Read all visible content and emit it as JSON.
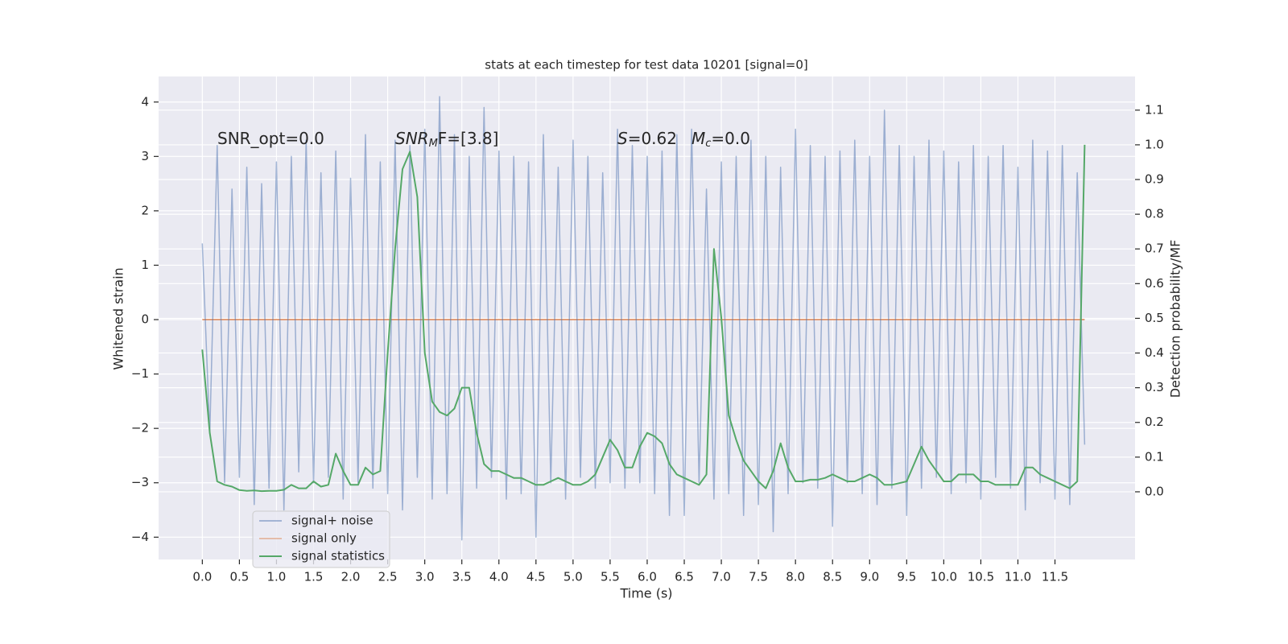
{
  "chart_data": {
    "type": "line",
    "title": "stats at each timestep for test data 10201 [signal=0]",
    "x_label": "Time (s)",
    "y_label": "Whitened strain",
    "y2_label": "Detection probability/MF",
    "annotations": [
      [
        "SNR_opt=0.0"
      ],
      [
        "SNR",
        "M",
        "F=[3.8]"
      ],
      [
        "S",
        "=0.62"
      ],
      [
        "M",
        "c",
        "=0.0"
      ]
    ],
    "x": [
      0.0,
      0.1,
      0.2,
      0.3,
      0.4,
      0.5,
      0.6,
      0.7,
      0.8,
      0.9,
      1.0,
      1.1,
      1.2,
      1.3,
      1.4,
      1.5,
      1.6,
      1.7,
      1.8,
      1.9,
      2.0,
      2.1,
      2.2,
      2.3,
      2.4,
      2.5,
      2.6,
      2.7,
      2.8,
      2.9,
      3.0,
      3.1,
      3.2,
      3.3,
      3.4,
      3.5,
      3.6,
      3.7,
      3.8,
      3.9,
      4.0,
      4.1,
      4.2,
      4.3,
      4.4,
      4.5,
      4.6,
      4.7,
      4.8,
      4.9,
      5.0,
      5.1,
      5.2,
      5.3,
      5.4,
      5.5,
      5.6,
      5.7,
      5.8,
      5.9,
      6.0,
      6.1,
      6.2,
      6.3,
      6.4,
      6.5,
      6.6,
      6.7,
      6.8,
      6.9,
      7.0,
      7.1,
      7.2,
      7.3,
      7.4,
      7.5,
      7.6,
      7.7,
      7.8,
      7.9,
      8.0,
      8.1,
      8.2,
      8.3,
      8.4,
      8.5,
      8.6,
      8.7,
      8.8,
      8.9,
      9.0,
      9.1,
      9.2,
      9.3,
      9.4,
      9.5,
      9.6,
      9.7,
      9.8,
      9.9,
      10.0,
      10.1,
      10.2,
      10.3,
      10.4,
      10.5,
      10.6,
      10.7,
      10.8,
      10.9,
      11.0,
      11.1,
      11.2,
      11.3,
      11.4,
      11.5,
      11.6,
      11.7,
      11.8,
      11.9
    ],
    "series": [
      {
        "name": "signal+ noise",
        "color": "#4c72b0",
        "axis": "y",
        "values": [
          1.4,
          -2.1,
          3.2,
          -3.0,
          2.4,
          -2.9,
          2.8,
          -3.4,
          2.5,
          -3.1,
          2.9,
          -3.5,
          3.0,
          -2.8,
          3.3,
          -3.0,
          2.7,
          -2.9,
          3.1,
          -3.3,
          2.6,
          -3.0,
          3.4,
          -3.1,
          2.9,
          -3.2,
          3.3,
          -3.5,
          3.2,
          -2.9,
          3.5,
          -3.3,
          4.1,
          -3.2,
          3.4,
          -4.05,
          3.0,
          -3.1,
          3.9,
          -2.9,
          3.1,
          -3.3,
          3.0,
          -3.2,
          2.9,
          -4.0,
          3.4,
          -3.0,
          2.8,
          -3.3,
          3.3,
          -2.9,
          3.0,
          -3.1,
          2.7,
          -3.0,
          3.5,
          -3.1,
          3.2,
          -3.0,
          3.0,
          -3.2,
          3.1,
          -3.6,
          3.4,
          -3.6,
          3.5,
          -3.0,
          2.4,
          -3.3,
          2.9,
          -3.2,
          3.0,
          -3.6,
          3.3,
          -3.4,
          3.0,
          -3.9,
          2.8,
          -3.2,
          3.5,
          -3.0,
          3.2,
          -3.1,
          3.0,
          -3.8,
          3.1,
          -3.0,
          3.3,
          -3.2,
          3.0,
          -3.4,
          3.85,
          -3.1,
          3.2,
          -3.6,
          3.0,
          -3.1,
          3.3,
          -2.9,
          3.1,
          -3.2,
          2.9,
          -3.0,
          3.2,
          -3.3,
          3.0,
          -2.9,
          3.2,
          -3.1,
          2.8,
          -3.5,
          3.3,
          -3.0,
          3.1,
          -3.3,
          3.2,
          -3.4,
          2.7,
          -2.3
        ]
      },
      {
        "name": "signal only",
        "color": "#dd8452",
        "axis": "y",
        "values": [
          0,
          0,
          0,
          0,
          0,
          0,
          0,
          0,
          0,
          0,
          0,
          0,
          0,
          0,
          0,
          0,
          0,
          0,
          0,
          0,
          0,
          0,
          0,
          0,
          0,
          0,
          0,
          0,
          0,
          0,
          0,
          0,
          0,
          0,
          0,
          0,
          0,
          0,
          0,
          0,
          0,
          0,
          0,
          0,
          0,
          0,
          0,
          0,
          0,
          0,
          0,
          0,
          0,
          0,
          0,
          0,
          0,
          0,
          0,
          0,
          0,
          0,
          0,
          0,
          0,
          0,
          0,
          0,
          0,
          0,
          0,
          0,
          0,
          0,
          0,
          0,
          0,
          0,
          0,
          0,
          0,
          0,
          0,
          0,
          0,
          0,
          0,
          0,
          0,
          0,
          0,
          0,
          0,
          0,
          0,
          0,
          0,
          0,
          0,
          0,
          0,
          0,
          0,
          0,
          0,
          0,
          0,
          0,
          0,
          0,
          0,
          0,
          0,
          0,
          0,
          0,
          0,
          0,
          0,
          0
        ]
      },
      {
        "name": "signal statistics",
        "color": "#55a868",
        "axis": "y2",
        "values": [
          0.41,
          0.17,
          0.03,
          0.02,
          0.015,
          0.005,
          0.003,
          0.004,
          0.002,
          0.003,
          0.003,
          0.006,
          0.02,
          0.01,
          0.01,
          0.03,
          0.015,
          0.02,
          0.11,
          0.06,
          0.02,
          0.02,
          0.07,
          0.05,
          0.06,
          0.4,
          0.7,
          0.93,
          0.98,
          0.85,
          0.4,
          0.26,
          0.23,
          0.22,
          0.24,
          0.3,
          0.3,
          0.17,
          0.08,
          0.06,
          0.06,
          0.05,
          0.04,
          0.04,
          0.03,
          0.02,
          0.02,
          0.03,
          0.04,
          0.03,
          0.02,
          0.02,
          0.03,
          0.05,
          0.1,
          0.15,
          0.12,
          0.07,
          0.07,
          0.13,
          0.17,
          0.16,
          0.14,
          0.08,
          0.05,
          0.04,
          0.03,
          0.02,
          0.05,
          0.7,
          0.5,
          0.22,
          0.15,
          0.09,
          0.06,
          0.03,
          0.01,
          0.06,
          0.14,
          0.07,
          0.03,
          0.03,
          0.035,
          0.035,
          0.04,
          0.05,
          0.04,
          0.03,
          0.03,
          0.04,
          0.05,
          0.04,
          0.02,
          0.02,
          0.025,
          0.03,
          0.08,
          0.13,
          0.09,
          0.06,
          0.03,
          0.03,
          0.05,
          0.05,
          0.05,
          0.03,
          0.03,
          0.02,
          0.02,
          0.02,
          0.02,
          0.07,
          0.07,
          0.05,
          0.04,
          0.03,
          0.02,
          0.01,
          0.03,
          1.0
        ]
      }
    ],
    "xlim": [
      -0.59,
      12.58
    ],
    "xticks": [
      {
        "value": 0,
        "label": "0.0"
      },
      0.5,
      {
        "value": 1,
        "label": "1.0"
      },
      1.5,
      {
        "value": 2,
        "label": "2.0"
      },
      2.5,
      {
        "value": 3,
        "label": "3.0"
      },
      3.5,
      {
        "value": 4,
        "label": "4.0"
      },
      4.5,
      {
        "value": 5,
        "label": "5.0"
      },
      5.5,
      {
        "value": 6,
        "label": "6.0"
      },
      6.5,
      {
        "value": 7,
        "label": "7.0"
      },
      7.5,
      {
        "value": 8,
        "label": "8.0"
      },
      8.5,
      {
        "value": 9,
        "label": "9.0"
      },
      9.5,
      {
        "value": 10,
        "label": "10.0"
      },
      10.5,
      {
        "value": 11,
        "label": "11.0"
      },
      11.5
    ],
    "ylim": [
      -4.41,
      4.47
    ],
    "yticks": [
      {
        "value": -4,
        "label": "−4"
      },
      {
        "value": -3,
        "label": "−3"
      },
      {
        "value": -2,
        "label": "−2"
      },
      {
        "value": -1,
        "label": "−1"
      },
      0,
      1,
      2,
      3,
      4
    ],
    "y2lim": [
      -0.195,
      1.197
    ],
    "y2ticks": [
      {
        "value": 0,
        "label": "0.0"
      },
      0.1,
      0.2,
      0.3,
      0.4,
      0.5,
      0.6,
      0.7,
      0.8,
      0.9,
      {
        "value": 1,
        "label": "1.0"
      },
      1.1
    ],
    "grid": true,
    "legend": "lower left"
  }
}
